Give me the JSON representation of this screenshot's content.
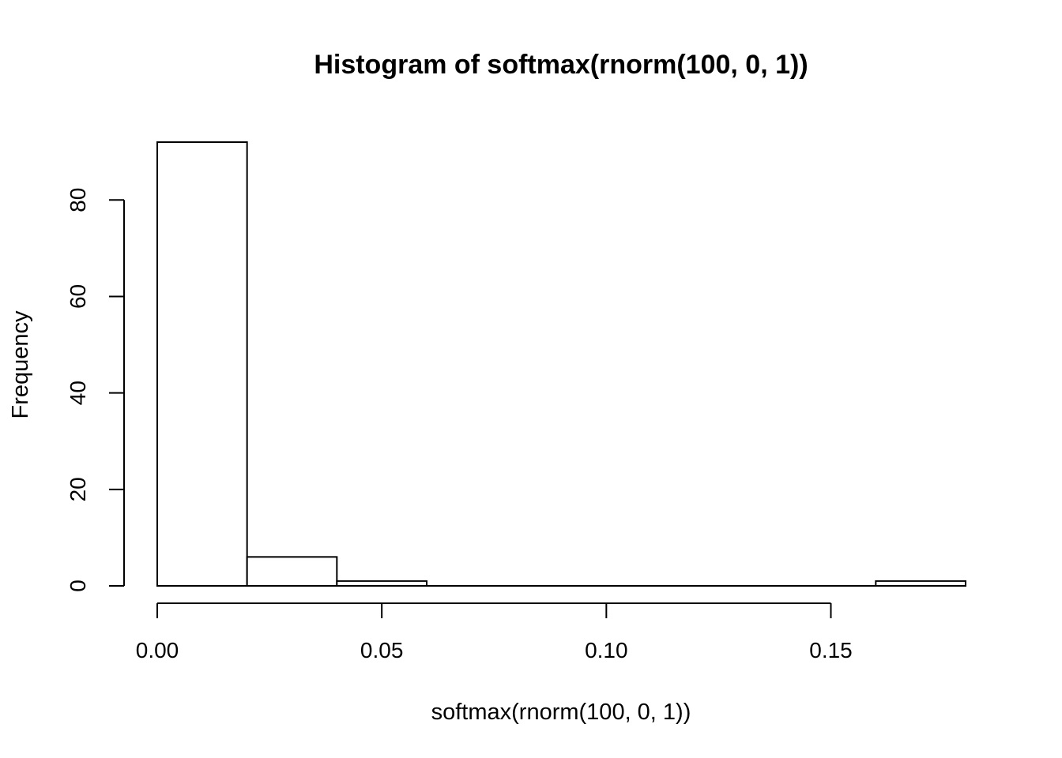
{
  "chart_data": {
    "type": "bar",
    "title": "Histogram of softmax(rnorm(100, 0, 1))",
    "xlabel": "softmax(rnorm(100, 0, 1))",
    "ylabel": "Frequency",
    "bins": [
      {
        "start": 0.0,
        "end": 0.02,
        "count": 92
      },
      {
        "start": 0.02,
        "end": 0.04,
        "count": 6
      },
      {
        "start": 0.04,
        "end": 0.06,
        "count": 1
      },
      {
        "start": 0.06,
        "end": 0.08,
        "count": 0
      },
      {
        "start": 0.08,
        "end": 0.1,
        "count": 0
      },
      {
        "start": 0.1,
        "end": 0.12,
        "count": 0
      },
      {
        "start": 0.12,
        "end": 0.14,
        "count": 0
      },
      {
        "start": 0.14,
        "end": 0.16,
        "count": 0
      },
      {
        "start": 0.16,
        "end": 0.18,
        "count": 1
      }
    ],
    "x_ticks": [
      "0.00",
      "0.05",
      "0.10",
      "0.15"
    ],
    "y_ticks": [
      "0",
      "20",
      "40",
      "60",
      "80"
    ],
    "xlim": [
      0.0,
      0.18
    ],
    "ylim": [
      0,
      92
    ],
    "x_axis_range": [
      0.0,
      0.15
    ],
    "y_axis_range": [
      0,
      80
    ],
    "grid": false,
    "legend": "none",
    "bar_fill": "#ffffff",
    "bar_stroke": "#000000"
  }
}
